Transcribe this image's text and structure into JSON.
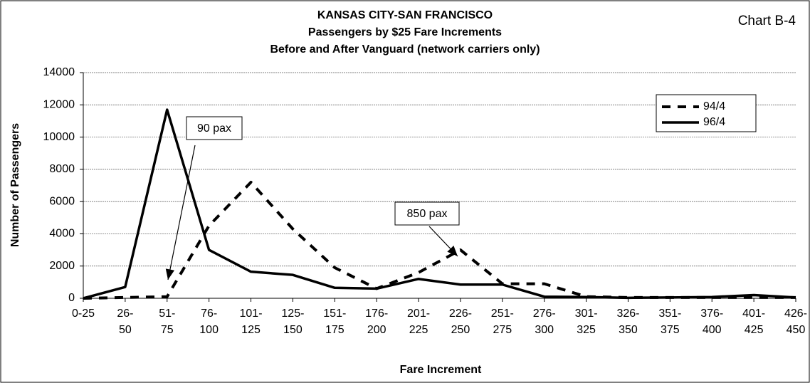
{
  "chart_data": {
    "type": "line",
    "title": "KANSAS CITY-SAN FRANCISCO",
    "subtitle": [
      "Passengers by $25 Fare Increments",
      "Before and After Vanguard (network carriers only)"
    ],
    "label": "Chart B-4",
    "xlabel": "Fare Increment",
    "ylabel": "Number of Passengers",
    "categories": [
      "0-25",
      "26-50",
      "51-75",
      "76-100",
      "101-125",
      "125-150",
      "151-175",
      "176-200",
      "201-225",
      "226-250",
      "251-275",
      "276-300",
      "301-325",
      "326-350",
      "351-375",
      "376-400",
      "401-425",
      "426-450"
    ],
    "series": [
      {
        "name": "94/4",
        "color": "#000000",
        "dashed": true,
        "values": [
          0,
          50,
          100,
          4500,
          7200,
          4300,
          1900,
          600,
          1600,
          3000,
          900,
          900,
          100,
          50,
          50,
          50,
          50,
          50
        ]
      },
      {
        "name": "96/4",
        "color": "#000000",
        "dashed": false,
        "values": [
          0,
          700,
          11700,
          3000,
          1650,
          1450,
          650,
          600,
          1200,
          850,
          850,
          100,
          80,
          30,
          50,
          80,
          200,
          50
        ]
      }
    ],
    "ylim": [
      0,
      14000
    ],
    "yticks": [
      0,
      2000,
      4000,
      6000,
      8000,
      10000,
      12000,
      14000
    ],
    "grid": true,
    "legend": "upper right",
    "annotations": [
      {
        "text": "90 pax"
      },
      {
        "text": "850 pax"
      }
    ]
  }
}
